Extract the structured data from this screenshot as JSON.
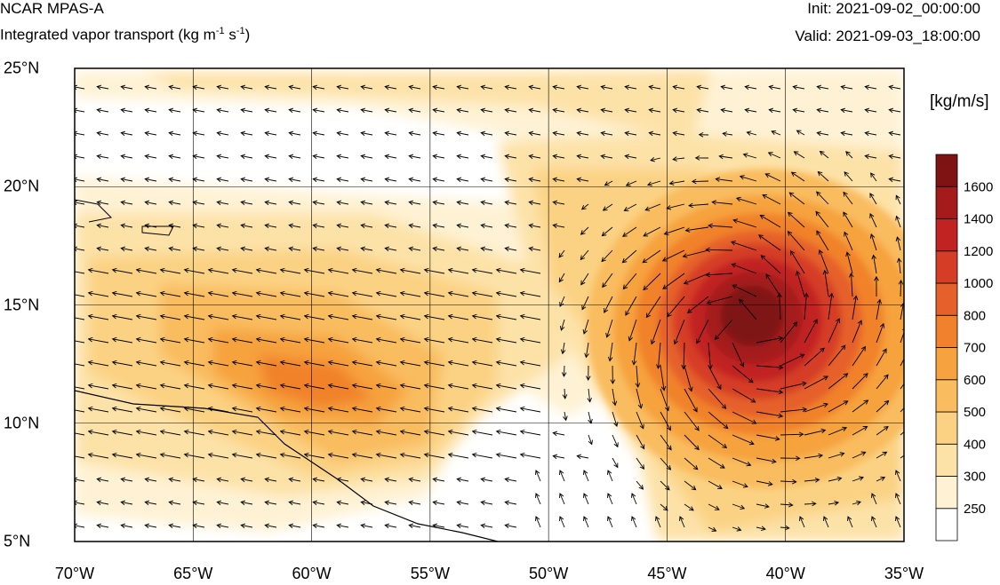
{
  "header": {
    "model": "NCAR MPAS-A",
    "field": "Integrated vapor transport (kg m",
    "field_sup1": "-1",
    "field_mid": " s",
    "field_sup2": "-1",
    "field_end": ")",
    "init": "Init: 2021-09-02_00:00:00",
    "valid": "Valid: 2021-09-03_18:00:00"
  },
  "map": {
    "lon_labels": [
      "70°W",
      "65°W",
      "60°W",
      "55°W",
      "50°W",
      "45°W",
      "40°W",
      "35°W"
    ],
    "lat_labels": [
      "25°N",
      "20°N",
      "15°N",
      "10°N",
      "5°N"
    ],
    "lon_range": [
      -70,
      -35
    ],
    "lat_range": [
      5,
      25
    ],
    "storm_center": {
      "lon": -41.5,
      "lat": 14.0
    }
  },
  "colorbar": {
    "units": "[kg/m/s]",
    "levels": [
      "250",
      "300",
      "400",
      "500",
      "600",
      "700",
      "800",
      "1000",
      "1200",
      "1400",
      "1600"
    ],
    "colors": [
      "#ffffff",
      "#fff2d4",
      "#fde2a8",
      "#fbd283",
      "#f9bc5e",
      "#f6a23e",
      "#f1822b",
      "#e5602a",
      "#d53d27",
      "#c12323",
      "#a51a1a",
      "#7f1212"
    ]
  }
}
